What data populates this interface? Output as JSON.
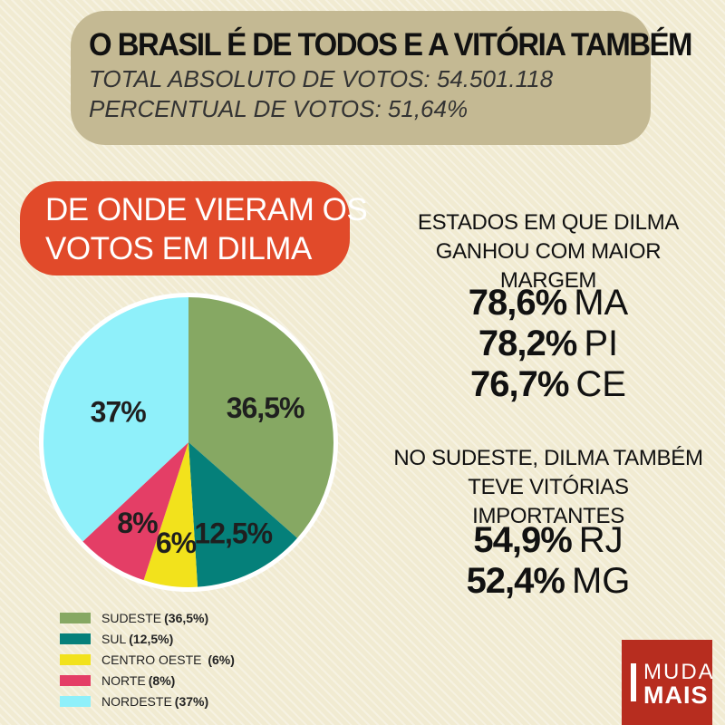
{
  "header": {
    "title": "O BRASIL É DE TODOS E A VITÓRIA TAMBÉM",
    "line1": "TOTAL ABSOLUTO DE VOTOS: 54.501.118",
    "line2": "PERCENTUAL DE VOTOS: 51,64%"
  },
  "section_title": {
    "line1": "DE ONDE VIERAM OS",
    "line2": "VOTOS EM DILMA"
  },
  "margin_states": {
    "heading_line1": "ESTADOS EM QUE DILMA",
    "heading_line2": "GANHOU COM MAIOR MARGEM",
    "items": [
      {
        "pct": "78,6%",
        "state": "MA"
      },
      {
        "pct": "78,2%",
        "state": "PI"
      },
      {
        "pct": "76,7%",
        "state": "CE"
      }
    ]
  },
  "southeast": {
    "heading_line1": "NO SUDESTE, DILMA TAMBÉM",
    "heading_line2": "TEVE VITÓRIAS IMPORTANTES",
    "items": [
      {
        "pct": "54,9%",
        "state": "RJ"
      },
      {
        "pct": "52,4%",
        "state": "MG"
      }
    ]
  },
  "chart_data": {
    "type": "pie",
    "start_angle_deg": 0,
    "direction": "clockwise",
    "slices": [
      {
        "label": "36,5%",
        "value": 36.5,
        "color": "#86a863",
        "legend": "SUDESTE",
        "legend_value": "(36,5%)"
      },
      {
        "label": "12,5%",
        "value": 12.5,
        "color": "#05807a",
        "legend": "SUL",
        "legend_value": "(12,5%)"
      },
      {
        "label": "6%",
        "value": 6,
        "color": "#f2e21c",
        "legend": "CENTRO OESTE",
        "legend_value": " (6%)"
      },
      {
        "label": "8%",
        "value": 8,
        "color": "#e43e66",
        "legend": "NORTE",
        "legend_value": "(8%)"
      },
      {
        "label": "37%",
        "value": 37,
        "color": "#8ff0fa",
        "legend": "NORDESTE",
        "legend_value": "(37%)"
      }
    ]
  },
  "logo": {
    "top": "MUDA",
    "bottom": "MAIS"
  }
}
